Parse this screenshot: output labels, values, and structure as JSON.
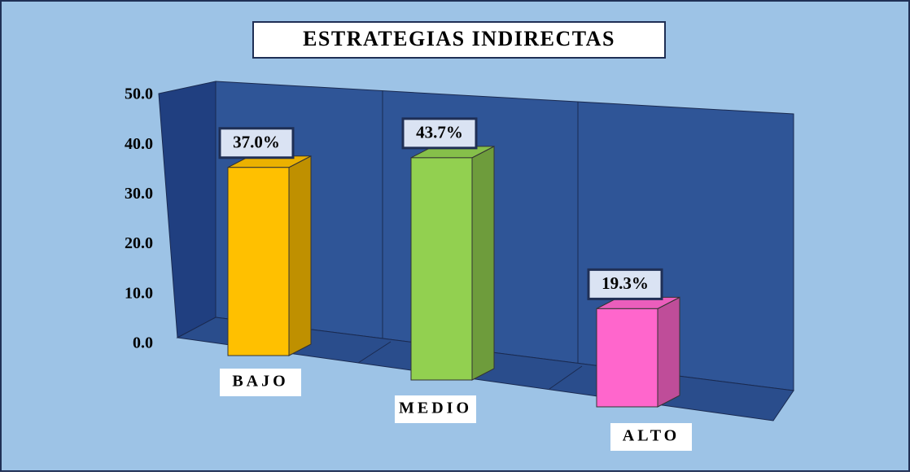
{
  "chart_data": {
    "type": "bar3d",
    "title": "ESTRATEGIAS INDIRECTAS",
    "categories": [
      "BAJO",
      "MEDIO",
      "ALTO"
    ],
    "values": [
      37.0,
      43.7,
      19.3
    ],
    "value_labels": [
      "37.0%",
      "43.7%",
      "19.3%"
    ],
    "colors": [
      "#ffc000",
      "#92d050",
      "#ff66cc"
    ],
    "ylim": [
      0,
      50
    ],
    "yticks": [
      {
        "value": 0,
        "label": "0.0"
      },
      {
        "value": 10,
        "label": "10.0"
      },
      {
        "value": 20,
        "label": "20.0"
      },
      {
        "value": 30,
        "label": "30.0"
      },
      {
        "value": 40,
        "label": "40.0"
      },
      {
        "value": 50,
        "label": "50.0"
      }
    ]
  }
}
